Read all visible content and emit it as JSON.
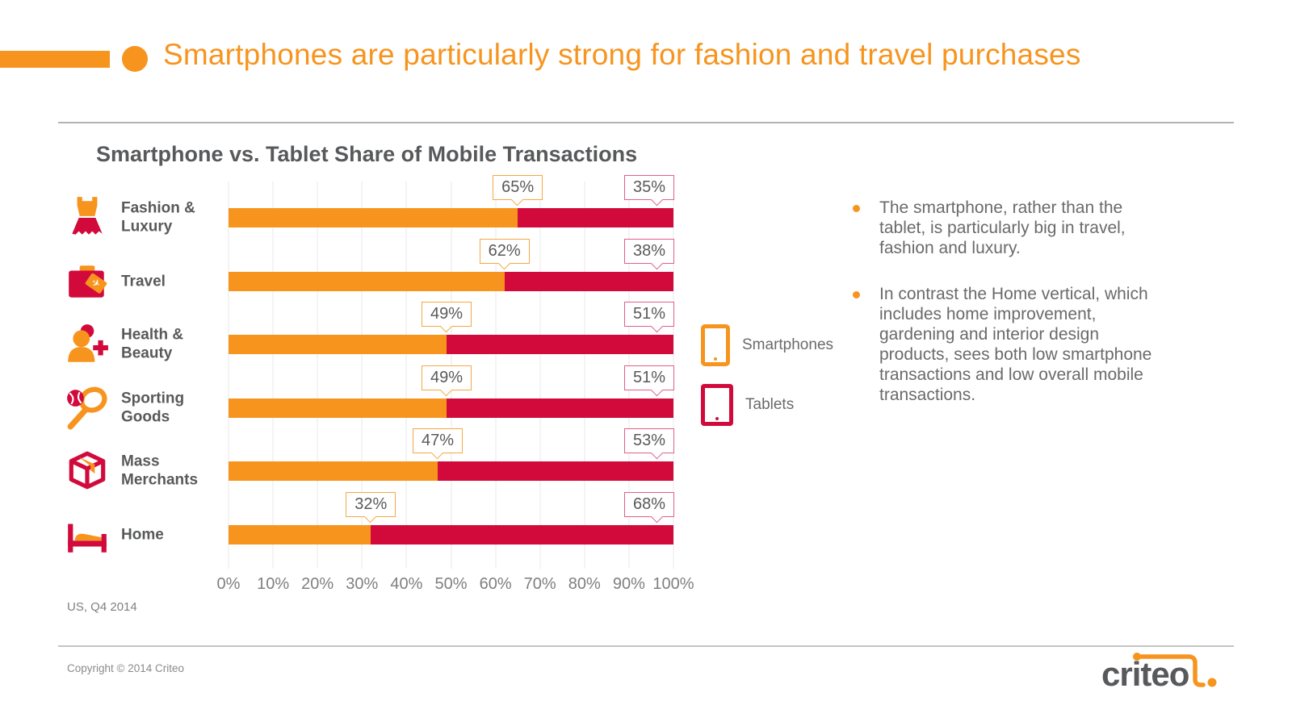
{
  "header": {
    "title": "Smartphones are particularly strong for fashion and travel purchases",
    "accent_color": "#F7941E"
  },
  "chart_data": {
    "type": "bar",
    "variant": "horizontal-stacked",
    "title": "Smartphone vs. Tablet Share of Mobile Transactions",
    "source_note": "US, Q4 2014",
    "xlabel": "",
    "ylabel": "",
    "xlim": [
      0,
      100
    ],
    "x_ticks": [
      "0%",
      "10%",
      "20%",
      "30%",
      "40%",
      "50%",
      "60%",
      "70%",
      "80%",
      "90%",
      "100%"
    ],
    "grid": true,
    "legend_position": "right",
    "categories": [
      "Fashion & Luxury",
      "Travel",
      "Health & Beauty",
      "Sporting Goods",
      "Mass Merchants",
      "Home"
    ],
    "category_icons": [
      "dress-icon",
      "suitcase-icon",
      "person-medical-cross-icon",
      "tennis-racket-icon",
      "package-box-icon",
      "bed-icon"
    ],
    "series": [
      {
        "name": "Smartphones",
        "color": "#F7941E",
        "values": [
          65,
          62,
          49,
          49,
          47,
          32
        ]
      },
      {
        "name": "Tablets",
        "color": "#D20A3C",
        "values": [
          35,
          38,
          51,
          51,
          53,
          68
        ]
      }
    ],
    "value_labels": [
      {
        "smartphone": "65%",
        "tablet": "35%"
      },
      {
        "smartphone": "62%",
        "tablet": "38%"
      },
      {
        "smartphone": "49%",
        "tablet": "51%"
      },
      {
        "smartphone": "49%",
        "tablet": "51%"
      },
      {
        "smartphone": "47%",
        "tablet": "53%"
      },
      {
        "smartphone": "32%",
        "tablet": "68%"
      }
    ],
    "legend": [
      {
        "icon": "smartphone-icon",
        "label": "Smartphones",
        "color": "#F7941E"
      },
      {
        "icon": "tablet-icon",
        "label": "Tablets",
        "color": "#D20A3C"
      }
    ]
  },
  "notes": {
    "bullet_color": "#F7941E",
    "bullets": [
      "The smartphone, rather than the tablet, is particularly big in travel, fashion and luxury.",
      "In contrast the Home vertical, which includes home improvement, gardening and interior design products, sees both low smartphone transactions and low overall mobile transactions."
    ]
  },
  "footer": {
    "copyright": "Copyright © 2014 Criteo",
    "logo_text": "criteo"
  },
  "colors": {
    "smartphone_orange": "#F7941E",
    "tablet_red": "#D20A3C",
    "title_gray": "#58595B",
    "axis_gray": "#7F7F7F",
    "callout_border_orange": "#F5A843",
    "callout_border_pink": "#E0608A",
    "gridline": "#E9E9E9"
  }
}
